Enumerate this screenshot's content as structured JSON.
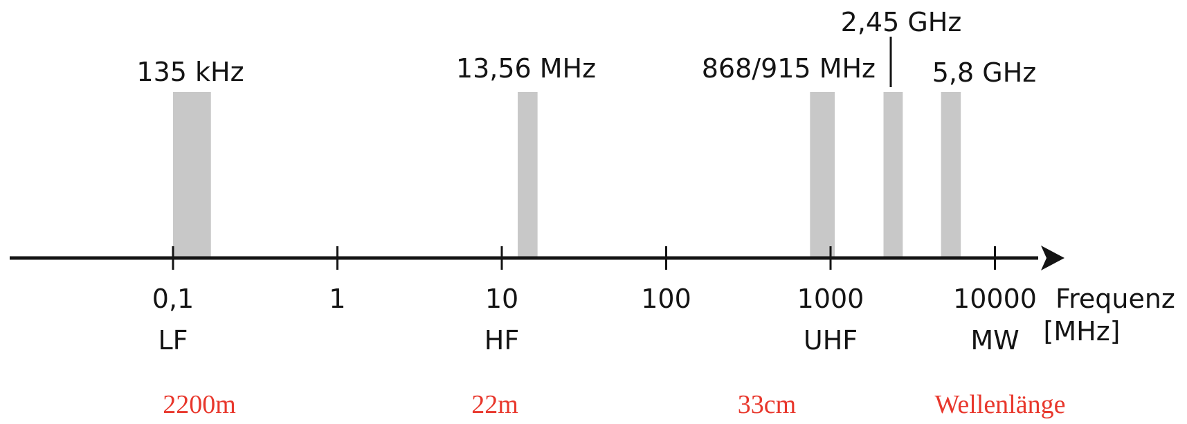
{
  "chart_data": {
    "type": "frequency-spectrum",
    "axis": {
      "scale": "log",
      "label_line1": "Frequenz",
      "label_line2": "[MHz]",
      "ticks": [
        {
          "value": 0.1,
          "label": "0,1",
          "band": "LF"
        },
        {
          "value": 1,
          "label": "1",
          "band": ""
        },
        {
          "value": 10,
          "label": "10",
          "band": "HF"
        },
        {
          "value": 100,
          "label": "100",
          "band": ""
        },
        {
          "value": 1000,
          "label": "1000",
          "band": "UHF"
        },
        {
          "value": 10000,
          "label": "10000",
          "band": "MW"
        }
      ]
    },
    "bands": [
      {
        "label": "135 kHz",
        "from_mhz": 0.1,
        "to_mhz": 0.17
      },
      {
        "label": "13,56 MHz",
        "from_mhz": 12.5,
        "to_mhz": 16.5
      },
      {
        "label": "868/915 MHz",
        "from_mhz": 750,
        "to_mhz": 1060
      },
      {
        "label": "2,45 GHz",
        "from_mhz": 2100,
        "to_mhz": 2750
      },
      {
        "label": "5,8 GHz",
        "from_mhz": 4700,
        "to_mhz": 6200
      }
    ],
    "wavelengths": [
      "2200m",
      "22m",
      "33cm"
    ],
    "wavelength_label": "Wellenlänge",
    "colors": {
      "axis": "#141414",
      "band": "#c8c8c8",
      "text": "#141414",
      "wavelength_text": "#e8372c"
    }
  }
}
